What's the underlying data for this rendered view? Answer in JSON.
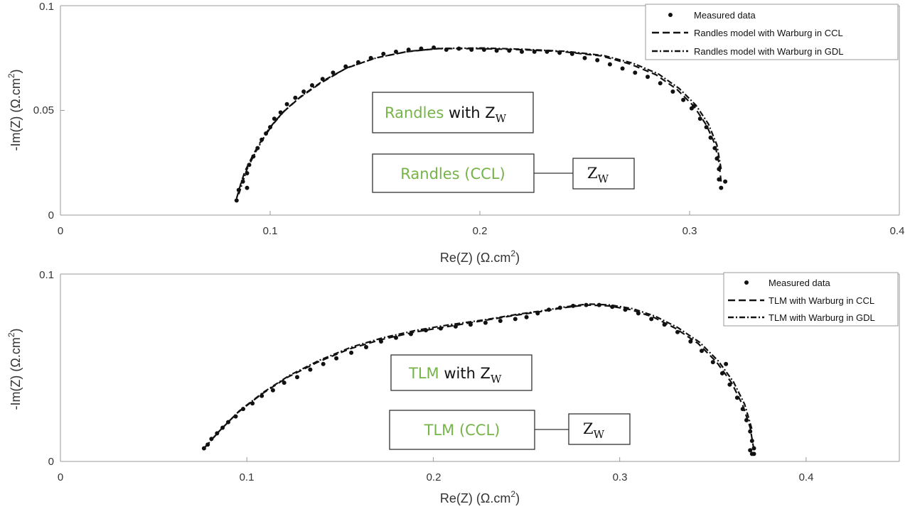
{
  "chart_data": [
    {
      "type": "scatter",
      "xlabel": "Re(Z) (Ω.cm²)",
      "ylabel": "-Im(Z) (Ω.cm²)",
      "xlabel_main": "Re(Z) (Ω.cm",
      "ylabel_main": "-Im(Z) (Ω.cm",
      "label_sup": "2",
      "label_close": ")",
      "xlim": [
        0,
        0.4
      ],
      "ylim": [
        0,
        0.1
      ],
      "xticks": [
        "0",
        "0.1",
        "0.2",
        "0.3",
        "0.4"
      ],
      "yticks": [
        "0",
        "0.05",
        "0.1"
      ],
      "grid": false,
      "legend_position": "top-right",
      "series": [
        {
          "name": "Measured data",
          "style": "markers",
          "x": [
            0.084,
            0.085,
            0.087,
            0.089,
            0.09,
            0.092,
            0.094,
            0.096,
            0.098,
            0.1,
            0.102,
            0.105,
            0.108,
            0.112,
            0.116,
            0.12,
            0.125,
            0.13,
            0.136,
            0.142,
            0.148,
            0.154,
            0.16,
            0.166,
            0.172,
            0.178,
            0.184,
            0.19,
            0.196,
            0.202,
            0.208,
            0.214,
            0.22,
            0.226,
            0.232,
            0.238,
            0.244,
            0.25,
            0.256,
            0.262,
            0.268,
            0.274,
            0.28,
            0.286,
            0.292,
            0.297,
            0.301,
            0.305,
            0.308,
            0.31,
            0.312,
            0.313,
            0.314,
            0.314,
            0.315,
            0.317,
            0.089,
            0.302
          ],
          "y": [
            0.007,
            0.012,
            0.016,
            0.02,
            0.024,
            0.028,
            0.032,
            0.036,
            0.039,
            0.042,
            0.046,
            0.049,
            0.053,
            0.056,
            0.059,
            0.062,
            0.065,
            0.068,
            0.071,
            0.073,
            0.075,
            0.077,
            0.078,
            0.079,
            0.0795,
            0.08,
            0.079,
            0.0795,
            0.079,
            0.079,
            0.0785,
            0.0785,
            0.078,
            0.078,
            0.078,
            0.0775,
            0.077,
            0.075,
            0.074,
            0.072,
            0.07,
            0.068,
            0.066,
            0.063,
            0.059,
            0.055,
            0.051,
            0.046,
            0.042,
            0.037,
            0.032,
            0.027,
            0.022,
            0.017,
            0.013,
            0.016,
            0.013,
            0.052
          ]
        },
        {
          "name": "Randles model with Warburg in CCL",
          "style": "dashed",
          "x": [
            0.084,
            0.086,
            0.088,
            0.092,
            0.096,
            0.1,
            0.106,
            0.114,
            0.124,
            0.136,
            0.15,
            0.165,
            0.18,
            0.2,
            0.22,
            0.24,
            0.258,
            0.272,
            0.284,
            0.294,
            0.302,
            0.308,
            0.312,
            0.314,
            0.315
          ],
          "y": [
            0.008,
            0.015,
            0.021,
            0.029,
            0.036,
            0.042,
            0.049,
            0.056,
            0.063,
            0.07,
            0.075,
            0.078,
            0.0795,
            0.0795,
            0.079,
            0.078,
            0.076,
            0.072,
            0.067,
            0.06,
            0.052,
            0.043,
            0.034,
            0.025,
            0.016
          ]
        },
        {
          "name": "Randles model with Warburg in GDL",
          "style": "dashdot",
          "x": [
            0.085,
            0.087,
            0.089,
            0.093,
            0.097,
            0.101,
            0.107,
            0.115,
            0.125,
            0.137,
            0.151,
            0.166,
            0.181,
            0.201,
            0.221,
            0.241,
            0.259,
            0.273,
            0.285,
            0.295,
            0.303,
            0.309,
            0.313,
            0.315
          ],
          "y": [
            0.01,
            0.016,
            0.022,
            0.03,
            0.037,
            0.043,
            0.05,
            0.057,
            0.064,
            0.0705,
            0.0752,
            0.0782,
            0.0796,
            0.0798,
            0.0792,
            0.0782,
            0.0762,
            0.0725,
            0.0675,
            0.0605,
            0.0525,
            0.0435,
            0.0335,
            0.022
          ]
        }
      ],
      "annotations": {
        "box1_green": "Randles",
        "box1_black": " with Z",
        "box1_sub": "W",
        "box2_green": "Randles (CCL)",
        "box3_main": "Z",
        "box3_sub": "W"
      }
    },
    {
      "type": "scatter",
      "xlabel": "Re(Z) (Ω.cm²)",
      "ylabel": "-Im(Z) (Ω.cm²)",
      "xlabel_main": "Re(Z) (Ω.cm",
      "ylabel_main": "-Im(Z) (Ω.cm",
      "label_sup": "2",
      "label_close": ")",
      "xlim": [
        0,
        0.45
      ],
      "ylim": [
        0,
        0.1
      ],
      "xticks": [
        "0",
        "0.1",
        "0.2",
        "0.3",
        "0.4"
      ],
      "yticks": [
        "0",
        "0.1"
      ],
      "grid": false,
      "legend_position": "top-right",
      "series": [
        {
          "name": "Measured data",
          "style": "markers",
          "x": [
            0.077,
            0.079,
            0.081,
            0.084,
            0.087,
            0.09,
            0.094,
            0.098,
            0.103,
            0.108,
            0.114,
            0.12,
            0.127,
            0.134,
            0.141,
            0.148,
            0.156,
            0.164,
            0.172,
            0.18,
            0.188,
            0.196,
            0.204,
            0.212,
            0.22,
            0.228,
            0.236,
            0.244,
            0.25,
            0.256,
            0.262,
            0.268,
            0.275,
            0.282,
            0.289,
            0.296,
            0.303,
            0.31,
            0.317,
            0.324,
            0.331,
            0.338,
            0.344,
            0.35,
            0.355,
            0.359,
            0.363,
            0.366,
            0.368,
            0.37,
            0.371,
            0.372,
            0.372,
            0.371,
            0.37,
            0.357
          ],
          "y": [
            0.007,
            0.009,
            0.012,
            0.015,
            0.018,
            0.021,
            0.024,
            0.028,
            0.031,
            0.035,
            0.038,
            0.042,
            0.045,
            0.049,
            0.052,
            0.055,
            0.058,
            0.061,
            0.064,
            0.066,
            0.068,
            0.07,
            0.071,
            0.072,
            0.073,
            0.074,
            0.075,
            0.076,
            0.077,
            0.079,
            0.081,
            0.082,
            0.083,
            0.0835,
            0.0835,
            0.0825,
            0.081,
            0.079,
            0.076,
            0.073,
            0.069,
            0.064,
            0.059,
            0.053,
            0.047,
            0.041,
            0.034,
            0.028,
            0.022,
            0.016,
            0.011,
            0.007,
            0.004,
            0.004,
            0.006,
            0.052
          ]
        },
        {
          "name": "TLM with Warburg in CCL",
          "style": "dashed",
          "x": [
            0.077,
            0.085,
            0.095,
            0.108,
            0.122,
            0.138,
            0.155,
            0.172,
            0.19,
            0.208,
            0.226,
            0.244,
            0.258,
            0.27,
            0.282,
            0.294,
            0.306,
            0.318,
            0.33,
            0.342,
            0.352,
            0.36,
            0.366,
            0.37,
            0.372
          ],
          "y": [
            0.007,
            0.016,
            0.026,
            0.036,
            0.045,
            0.053,
            0.06,
            0.065,
            0.069,
            0.072,
            0.075,
            0.078,
            0.08,
            0.082,
            0.0835,
            0.083,
            0.081,
            0.077,
            0.071,
            0.063,
            0.053,
            0.042,
            0.03,
            0.018,
            0.006
          ]
        },
        {
          "name": "TLM with Warburg in GDL",
          "style": "dashdot",
          "x": [
            0.078,
            0.086,
            0.096,
            0.109,
            0.123,
            0.139,
            0.156,
            0.173,
            0.191,
            0.209,
            0.227,
            0.245,
            0.259,
            0.271,
            0.283,
            0.295,
            0.307,
            0.319,
            0.331,
            0.343,
            0.353,
            0.361,
            0.367,
            0.371
          ],
          "y": [
            0.008,
            0.017,
            0.027,
            0.037,
            0.046,
            0.054,
            0.061,
            0.066,
            0.07,
            0.073,
            0.0755,
            0.0785,
            0.0805,
            0.0825,
            0.084,
            0.0835,
            0.0815,
            0.0775,
            0.0715,
            0.0635,
            0.0535,
            0.0425,
            0.0305,
            0.017
          ]
        }
      ],
      "annotations": {
        "box1_green": "TLM",
        "box1_black": " with Z",
        "box1_sub": "W",
        "box2_green": "TLM (CCL)",
        "box3_main": "Z",
        "box3_sub": "W"
      }
    }
  ]
}
